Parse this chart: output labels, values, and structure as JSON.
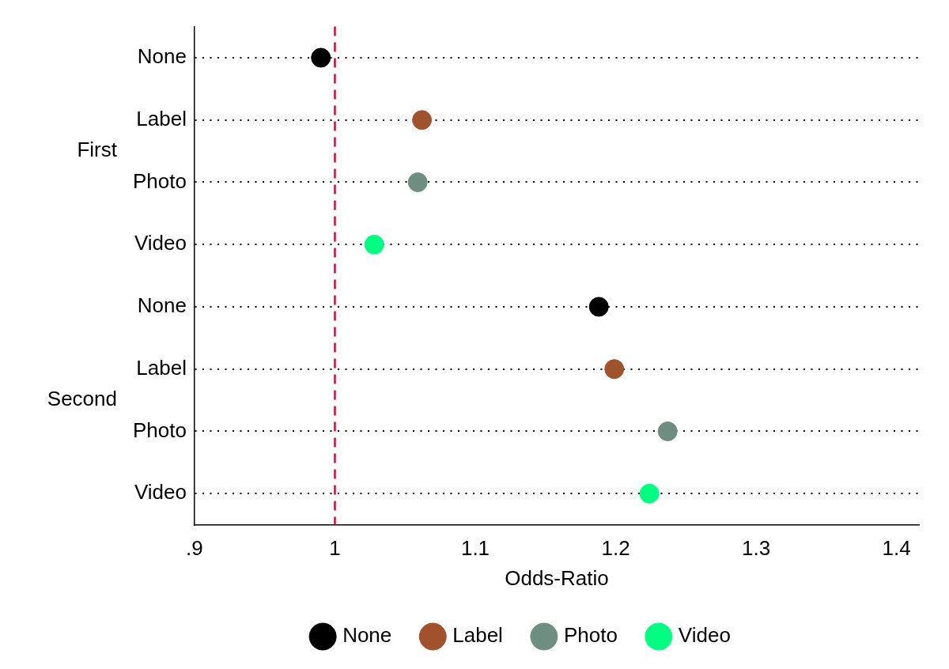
{
  "chart_data": {
    "type": "scatter",
    "orientation": "horizontal",
    "xlabel": "Odds-Ratio",
    "categories": [
      "None",
      "Label",
      "Photo",
      "Video",
      "None",
      "Label",
      "Photo",
      "Video"
    ],
    "annotations": [
      "First",
      "Second"
    ],
    "series": [
      {
        "name": "None",
        "color": "#000000",
        "values": [
          0.99,
          null,
          null,
          null,
          1.188,
          null,
          null,
          null
        ]
      },
      {
        "name": "Label",
        "color": "#a0522d",
        "values": [
          null,
          1.062,
          null,
          null,
          null,
          1.199,
          null,
          null
        ]
      },
      {
        "name": "Photo",
        "color": "#6e8e82",
        "values": [
          null,
          null,
          1.059,
          null,
          null,
          null,
          1.237,
          null
        ]
      },
      {
        "name": "Video",
        "color": "#00ff80",
        "values": [
          null,
          null,
          null,
          1.028,
          null,
          null,
          null,
          1.224
        ]
      }
    ],
    "xlim": [
      0.9,
      1.416
    ],
    "xticks": [
      {
        "value": 0.9,
        "label": ".9"
      },
      1,
      1.1,
      1.2,
      1.3,
      1.4
    ],
    "ref_lines": [
      {
        "axis": "x",
        "value": 1,
        "color": "#c8103c",
        "line_style": "dashed"
      }
    ],
    "grid": "y",
    "legend": "bottom",
    "marker": "circle"
  }
}
